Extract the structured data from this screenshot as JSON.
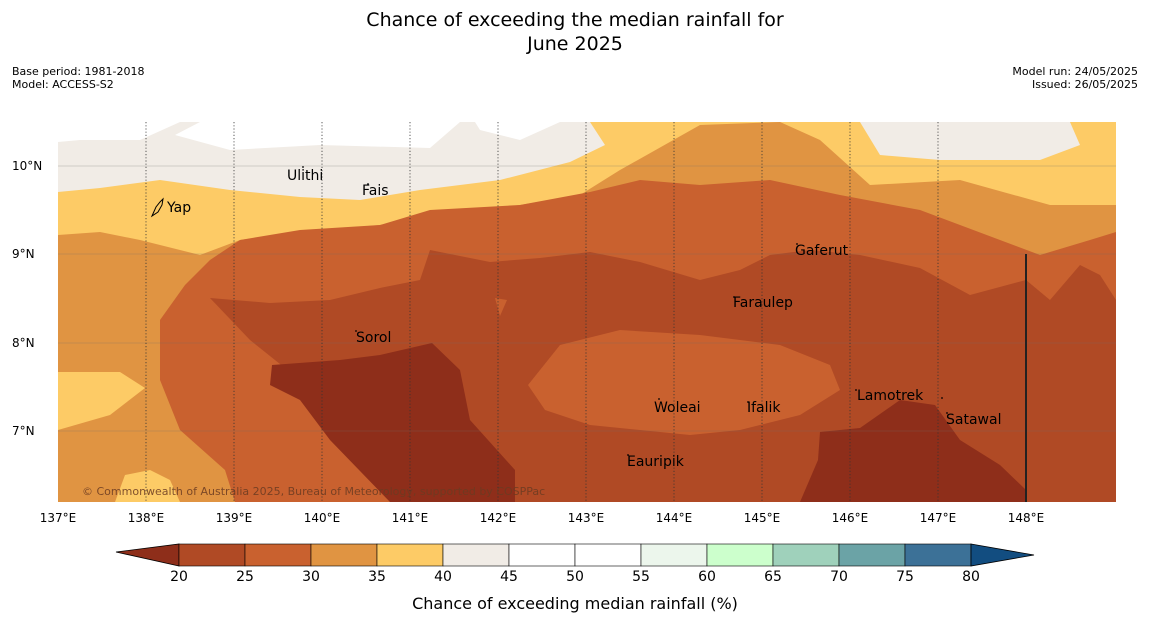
{
  "title_line1": "Chance of exceeding the median rainfall for",
  "title_line2": "June 2025",
  "base_period": "Base period: 1981-2018",
  "model": "Model: ACCESS-S2",
  "model_run": "Model run: 24/05/2025",
  "issued": "Issued: 26/05/2025",
  "copyright": "© Commonwealth of Australia 2025, Bureau of Meteorology, supported by COSPPac",
  "lat_labels": [
    "10°N",
    "9°N",
    "8°N",
    "7°N"
  ],
  "lon_labels": [
    "137°E",
    "138°E",
    "139°E",
    "140°E",
    "141°E",
    "142°E",
    "143°E",
    "144°E",
    "145°E",
    "146°E",
    "147°E",
    "148°E"
  ],
  "places": [
    "Ulithi",
    "Fais",
    "Yap",
    "Gaferut",
    "Faraulep",
    "Sorol",
    "Woleai",
    "Ifalik",
    "Lamotrek",
    "Satawal",
    "Eauripik"
  ],
  "colorbar": {
    "title": "Chance of exceeding median rainfall (%)",
    "ticks": [
      "20",
      "25",
      "30",
      "35",
      "40",
      "45",
      "50",
      "55",
      "60",
      "65",
      "70",
      "75",
      "80"
    ],
    "colors": {
      "below_20": "#8e2e1a",
      "c20_25": "#b04a25",
      "c25_30": "#c9612f",
      "c30_35": "#e09442",
      "c35_40": "#fdcb66",
      "c40_45": "#f1ece6",
      "c45_50": "#ffffff",
      "c50_55": "#ffffff",
      "c55_60": "#ecf6ec",
      "c60_65": "#ccffcc",
      "c65_70": "#9fd1bb",
      "c70_75": "#6ba3a6",
      "c75_80": "#3c7197",
      "above_80": "#124d80"
    }
  }
}
